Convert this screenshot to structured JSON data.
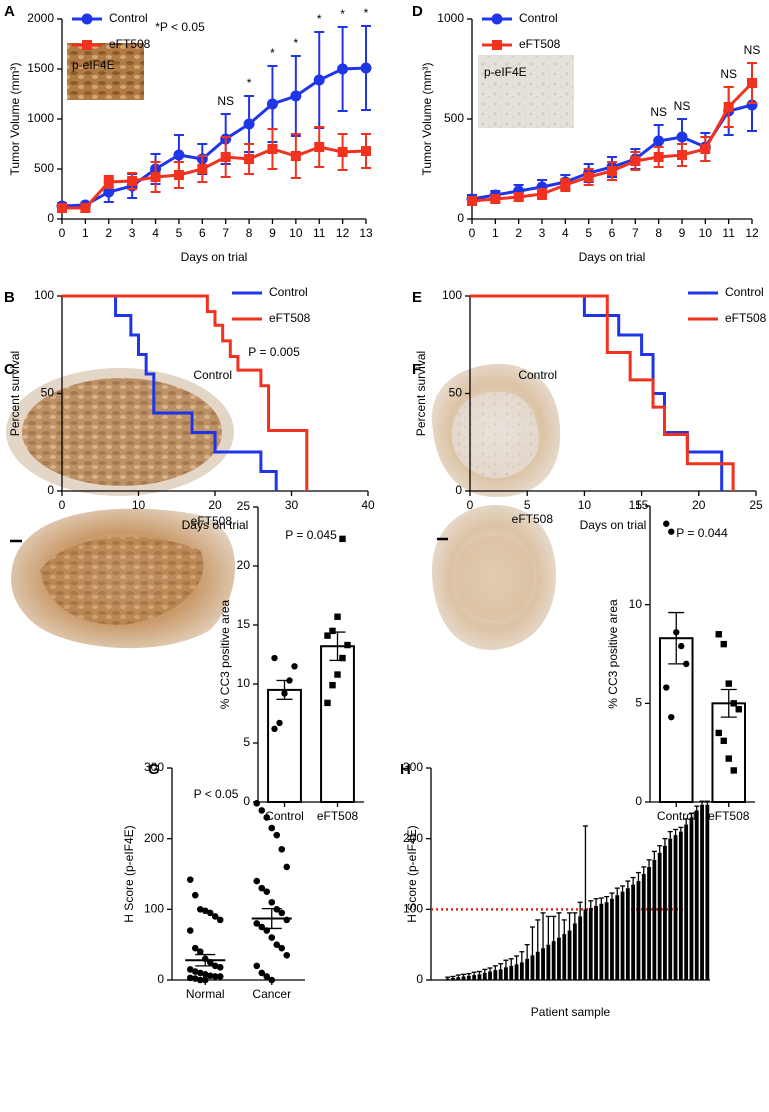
{
  "chart_data": [
    {
      "panel": "A",
      "type": "line",
      "x": [
        0,
        1,
        2,
        3,
        4,
        5,
        6,
        7,
        8,
        9,
        10,
        11,
        12,
        13
      ],
      "xlim": [
        0,
        13
      ],
      "xticks": [
        0,
        1,
        2,
        3,
        4,
        5,
        6,
        7,
        8,
        9,
        10,
        11,
        12,
        13
      ],
      "ylim": [
        0,
        2000
      ],
      "yticks": [
        0,
        500,
        1000,
        1500,
        2000
      ],
      "xlabel": "Days on trial",
      "ylabel": "Tumor Volume (mm³)",
      "legend": "upper left",
      "note": "*P < 0.05",
      "inset_label": "p-eIF4E",
      "series": [
        {
          "name": "Control",
          "color": "#1f35e8",
          "marker": "circle",
          "values": [
            130,
            140,
            270,
            330,
            500,
            640,
            600,
            800,
            950,
            1150,
            1230,
            1390,
            1500,
            1510
          ],
          "errors": [
            30,
            20,
            100,
            120,
            150,
            200,
            150,
            250,
            280,
            380,
            400,
            480,
            420,
            420
          ]
        },
        {
          "name": "eFT508",
          "color": "#f0321e",
          "marker": "square",
          "values": [
            110,
            110,
            370,
            380,
            420,
            440,
            500,
            620,
            600,
            700,
            630,
            720,
            670,
            680
          ],
          "errors": [
            30,
            40,
            60,
            80,
            150,
            130,
            130,
            200,
            150,
            200,
            220,
            200,
            180,
            170
          ]
        }
      ],
      "annotations": [
        {
          "x": 7,
          "text": "NS"
        },
        {
          "x": 8,
          "text": "*"
        },
        {
          "x": 9,
          "text": "*"
        },
        {
          "x": 10,
          "text": "*"
        },
        {
          "x": 11,
          "text": "*"
        },
        {
          "x": 12,
          "text": "*"
        },
        {
          "x": 13,
          "text": "*"
        }
      ]
    },
    {
      "panel": "D",
      "type": "line",
      "x": [
        0,
        1,
        2,
        3,
        4,
        5,
        6,
        7,
        8,
        9,
        10,
        11,
        12
      ],
      "xlim": [
        0,
        12
      ],
      "xticks": [
        0,
        1,
        2,
        3,
        4,
        5,
        6,
        7,
        8,
        9,
        10,
        11,
        12
      ],
      "ylim": [
        0,
        1000
      ],
      "yticks": [
        0,
        500,
        1000
      ],
      "xlabel": "Days on trial",
      "ylabel": "Tumor Volume (mm³)",
      "legend": "upper left",
      "inset_label": "p-eIF4E",
      "series": [
        {
          "name": "Control",
          "color": "#1f35e8",
          "marker": "circle",
          "values": [
            100,
            120,
            140,
            160,
            185,
            230,
            260,
            300,
            390,
            410,
            360,
            540,
            570
          ],
          "errors": [
            20,
            20,
            30,
            35,
            35,
            45,
            50,
            50,
            80,
            90,
            70,
            120,
            130
          ]
        },
        {
          "name": "eFT508",
          "color": "#f0321e",
          "marker": "square",
          "values": [
            90,
            100,
            110,
            125,
            170,
            210,
            240,
            290,
            310,
            320,
            350,
            560,
            680
          ],
          "errors": [
            15,
            15,
            20,
            25,
            30,
            40,
            45,
            45,
            50,
            55,
            60,
            100,
            100
          ]
        }
      ],
      "annotations": [
        {
          "x": 8,
          "text": "NS"
        },
        {
          "x": 9,
          "text": "NS"
        },
        {
          "x": 11,
          "text": "NS"
        },
        {
          "x": 12,
          "text": "NS"
        }
      ]
    },
    {
      "panel": "B",
      "type": "survival",
      "xlim": [
        0,
        40
      ],
      "xticks": [
        0,
        10,
        20,
        30,
        40
      ],
      "ylim": [
        0,
        100
      ],
      "yticks": [
        0,
        50,
        100
      ],
      "xlabel": "Days on trial",
      "ylabel": "Percent survival",
      "legend": "upper right",
      "note": "P = 0.005",
      "series": [
        {
          "name": "Control",
          "color": "#1f35e8",
          "x": [
            0,
            7,
            9,
            10,
            11,
            12,
            17,
            20,
            26,
            28
          ],
          "values": [
            100,
            90,
            80,
            70,
            60,
            40,
            30,
            20,
            10,
            0
          ]
        },
        {
          "name": "eFT508",
          "color": "#f0321e",
          "x": [
            0,
            19,
            20,
            21,
            22,
            23,
            26,
            27,
            32
          ],
          "values": [
            100,
            92,
            85,
            77,
            69,
            62,
            54,
            31,
            0
          ]
        }
      ]
    },
    {
      "panel": "E",
      "type": "survival",
      "xlim": [
        0,
        25
      ],
      "xticks": [
        0,
        5,
        10,
        15,
        20,
        25
      ],
      "ylim": [
        0,
        100
      ],
      "yticks": [
        0,
        50,
        100
      ],
      "xlabel": "Days on trial",
      "ylabel": "Percent survival",
      "legend": "upper right",
      "series": [
        {
          "name": "Control",
          "color": "#1f35e8",
          "x": [
            0,
            10,
            13,
            15,
            16,
            17,
            19,
            22
          ],
          "values": [
            100,
            90,
            80,
            70,
            50,
            30,
            20,
            0
          ]
        },
        {
          "name": "eFT508",
          "color": "#f0321e",
          "x": [
            0,
            12,
            14,
            16,
            17,
            19,
            23
          ],
          "values": [
            100,
            71,
            57,
            43,
            29,
            14,
            0
          ]
        }
      ]
    },
    {
      "panel": "C",
      "type": "bar",
      "categories": [
        "Control",
        "eFT508"
      ],
      "values": [
        9.5,
        13.2
      ],
      "errors": [
        0.8,
        1.2
      ],
      "error_bars": "both",
      "color": "#ffffff",
      "edgecolor": "#000000",
      "ylim": [
        0,
        25
      ],
      "yticks": [
        0,
        5,
        10,
        15,
        20,
        25
      ],
      "ylabel": "% CC3 positive area",
      "note": "P = 0.045",
      "image_labels": [
        "Control",
        "eFT508"
      ],
      "point_markers": [
        "circle",
        "square"
      ],
      "points": [
        [
          6.2,
          6.7,
          9.2,
          10.3,
          11.5,
          12.2
        ],
        [
          8.4,
          9.9,
          10.8,
          12.2,
          13.3,
          14.1,
          14.5,
          15.7,
          22.3
        ]
      ]
    },
    {
      "panel": "F",
      "type": "bar",
      "categories": [
        "Control",
        "eFT508"
      ],
      "values": [
        8.3,
        5.0
      ],
      "errors": [
        1.3,
        0.7
      ],
      "error_bars": "both",
      "color": "#ffffff",
      "edgecolor": "#000000",
      "ylim": [
        0,
        15
      ],
      "yticks": [
        0,
        5,
        10,
        15
      ],
      "ylabel": "% CC3 positive area",
      "note": "P = 0.044",
      "image_labels": [
        "Control",
        "eFT508"
      ],
      "point_markers": [
        "circle",
        "square"
      ],
      "points": [
        [
          14.1,
          13.7,
          8.6,
          7.9,
          7.0,
          5.8,
          4.3
        ],
        [
          8.5,
          8.0,
          6.0,
          5.0,
          4.7,
          3.5,
          3.1,
          2.2,
          1.6
        ]
      ]
    },
    {
      "panel": "G",
      "type": "dotplot",
      "categories": [
        "Normal",
        "Cancer"
      ],
      "values": [
        28,
        87
      ],
      "errors": [
        8,
        14
      ],
      "color": "#000000",
      "ylim": [
        0,
        300
      ],
      "yticks": [
        0,
        100,
        200,
        300
      ],
      "ylabel": "H Score (p-eIF4E)",
      "note": "P < 0.05",
      "points": [
        [
          142,
          120,
          100,
          98,
          95,
          90,
          85,
          70,
          45,
          40,
          30,
          25,
          20,
          18,
          15,
          12,
          10,
          8,
          6,
          5,
          5,
          3,
          2,
          0,
          0
        ],
        [
          250,
          240,
          230,
          215,
          205,
          185,
          160,
          140,
          130,
          125,
          110,
          100,
          95,
          85,
          80,
          75,
          70,
          60,
          50,
          45,
          35,
          20,
          10,
          5,
          0
        ]
      ]
    },
    {
      "panel": "H",
      "type": "bar",
      "color": "#000000",
      "error_bars": "up",
      "values": [
        2,
        3,
        4,
        5,
        6,
        7,
        8,
        10,
        12,
        14,
        15,
        18,
        20,
        22,
        25,
        30,
        35,
        40,
        45,
        50,
        55,
        60,
        65,
        70,
        80,
        90,
        100,
        102,
        105,
        108,
        110,
        115,
        120,
        125,
        130,
        135,
        140,
        150,
        160,
        170,
        180,
        190,
        200,
        205,
        210,
        220,
        230,
        240,
        248,
        248
      ],
      "errors": [
        2,
        2,
        3,
        3,
        3,
        4,
        4,
        5,
        5,
        6,
        8,
        10,
        10,
        12,
        15,
        20,
        40,
        45,
        50,
        40,
        35,
        35,
        20,
        25,
        15,
        20,
        118,
        10,
        10,
        8,
        8,
        8,
        10,
        8,
        10,
        10,
        12,
        10,
        10,
        12,
        10,
        10,
        10,
        8,
        6,
        8,
        6,
        6,
        5,
        5
      ],
      "ylim": [
        0,
        300
      ],
      "yticks": [
        0,
        100,
        200,
        300
      ],
      "ylabel": "H Score (p-eIF4E)",
      "xlabel": "Patient sample",
      "reference_line": 100,
      "reference_color": "#e8251a"
    }
  ]
}
